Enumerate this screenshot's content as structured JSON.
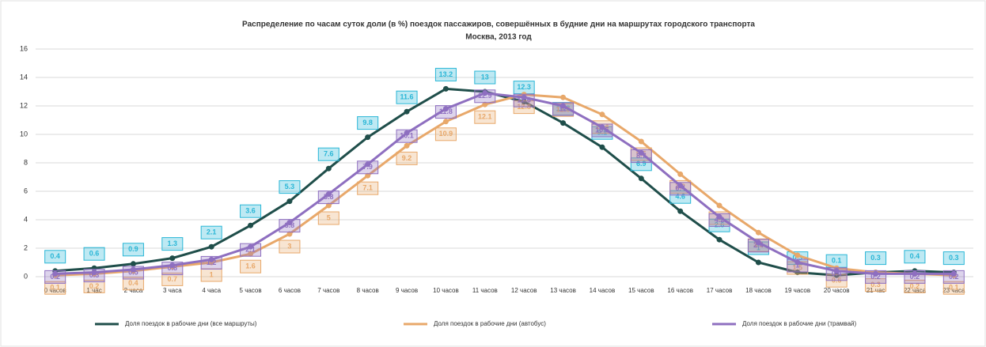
{
  "chart_data": {
    "type": "line",
    "title": "Распределение по часам суток доли (в %) поездок пассажиров, совершённых в будние дни на маршрутах городского транспорта",
    "subtitle": "Москва, 2013 год",
    "categories": [
      "0 часов",
      "1 час",
      "2 часа",
      "3 часа",
      "4 часа",
      "5 часов",
      "6 часов",
      "7 часов",
      "8 часов",
      "9 часов",
      "10 часов",
      "11 часов",
      "12 часов",
      "13 часов",
      "14 часов",
      "15 часов",
      "16 часов",
      "17 часов",
      "18 часов",
      "19 часов",
      "20 часов",
      "21 час",
      "22 часа",
      "23 часа"
    ],
    "series": [
      {
        "name": "Доля поездок в рабочие дни (все маршруты)",
        "color": "#1f4e4a",
        "label_color": "#29b6d6",
        "values": [
          0.4,
          0.6,
          0.9,
          1.3,
          2.1,
          3.6,
          5.3,
          7.6,
          9.8,
          11.6,
          13.2,
          13.0,
          12.3,
          10.8,
          9.1,
          6.9,
          4.6,
          2.6,
          1.0,
          0.3,
          0.1,
          0.3,
          0.4,
          0.3
        ]
      },
      {
        "name": "Доля поездок в рабочие дни (автобус)",
        "color": "#e8a86a",
        "label_color": "#e8a86a",
        "values": [
          0.1,
          0.2,
          0.4,
          0.7,
          1.0,
          1.6,
          3.0,
          5.0,
          7.1,
          9.2,
          10.9,
          12.1,
          12.8,
          12.6,
          11.4,
          9.5,
          7.2,
          5.0,
          3.1,
          1.5,
          0.6,
          0.3,
          0.2,
          0.1
        ]
      },
      {
        "name": "Доля поездок в рабочие дни (трамвай)",
        "color": "#8e6fc0",
        "label_color": "#8e6fc0",
        "values": [
          0.2,
          0.3,
          0.5,
          0.8,
          1.2,
          2.1,
          3.8,
          5.8,
          7.9,
          10.1,
          11.8,
          12.9,
          12.6,
          12.0,
          10.5,
          8.7,
          6.4,
          4.2,
          2.4,
          1.0,
          0.4,
          0.2,
          0.2,
          0.2
        ]
      }
    ],
    "ylim": [
      0,
      16
    ],
    "yticks": [
      0,
      2,
      4,
      6,
      8,
      10,
      12,
      14,
      16
    ],
    "grid": true
  }
}
